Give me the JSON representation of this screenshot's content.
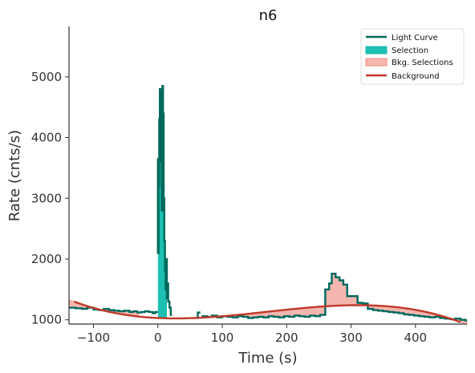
{
  "chart_data": {
    "type": "line",
    "title": "n6",
    "xlabel": "Time (s)",
    "ylabel": "Rate (cnts/s)",
    "xlim": [
      -138,
      480
    ],
    "ylim": [
      930,
      5830
    ],
    "xticks": [
      -100,
      0,
      100,
      200,
      300,
      400
    ],
    "yticks": [
      1000,
      2000,
      3000,
      4000,
      5000
    ],
    "xtick_labels": [
      "−100",
      "0",
      "100",
      "200",
      "300",
      "400"
    ],
    "ytick_labels": [
      "1000",
      "2000",
      "3000",
      "4000",
      "5000"
    ],
    "legend": {
      "placement": "top-right",
      "entries": [
        {
          "label": "Light Curve",
          "kind": "line",
          "color": "#00695c"
        },
        {
          "label": "Selection",
          "kind": "patch",
          "color": "#1dbfb0"
        },
        {
          "label": "Bkg. Selections",
          "kind": "patch",
          "color": "#f4b6ae"
        },
        {
          "label": "Background",
          "kind": "line",
          "color": "#c0392b"
        }
      ]
    },
    "colors": {
      "light_curve": "#00695c",
      "selection": "#1dbfb0",
      "bkg_selection": "#f4b6ae",
      "bkg_selection_edge": "#f08e82",
      "background": "#c0392b",
      "axis": "#333333"
    },
    "background_poly": {
      "type": "cubic",
      "points": [
        [
          -130,
          1300
        ],
        [
          0,
          1030
        ],
        [
          300,
          1240
        ],
        [
          470,
          960
        ]
      ]
    },
    "selection": [
      0,
      14
    ],
    "bkg_selections": [
      [
        -138,
        -30
      ],
      [
        85,
        480
      ]
    ],
    "light_curve": {
      "segments": [
        {
          "x": [
            -138,
            -128,
            -118,
            -110,
            -100,
            -92,
            -84,
            -76,
            -68,
            -60,
            -52,
            -44,
            -38,
            -32,
            -26,
            -20,
            -14,
            -8,
            -4
          ],
          "y": [
            1200,
            1190,
            1180,
            1200,
            1170,
            1160,
            1180,
            1160,
            1150,
            1140,
            1150,
            1130,
            1140,
            1120,
            1130,
            1140,
            1130,
            1110,
            1130
          ]
        },
        {
          "x": [
            -1,
            0,
            1,
            2,
            3,
            4,
            5,
            6,
            7,
            8,
            9,
            10,
            11,
            12,
            13,
            14,
            15,
            16,
            18,
            20
          ],
          "y": [
            3650,
            2100,
            3200,
            4300,
            4800,
            3600,
            4700,
            2800,
            4850,
            4400,
            3000,
            2300,
            1800,
            1500,
            2000,
            1350,
            1600,
            1300,
            1200,
            1080
          ]
        },
        {
          "x": [
            58,
            62
          ],
          "y": [
            1030,
            1120
          ]
        },
        {
          "x": [
            68,
            76,
            84,
            92,
            100,
            108,
            116,
            124,
            132,
            140,
            148,
            156,
            164,
            172,
            180,
            188,
            196,
            204,
            212,
            220,
            228,
            236,
            244,
            252,
            260,
            266,
            270,
            276,
            282,
            288,
            294,
            300,
            310,
            318,
            326,
            334,
            342,
            350,
            358,
            366,
            374,
            382,
            390,
            398,
            406,
            414,
            422,
            430,
            438,
            446,
            454,
            462,
            470,
            478
          ],
          "y": [
            1060,
            1050,
            1070,
            1040,
            1060,
            1050,
            1040,
            1060,
            1050,
            1030,
            1040,
            1050,
            1040,
            1060,
            1050,
            1040,
            1060,
            1050,
            1070,
            1060,
            1050,
            1070,
            1060,
            1080,
            1500,
            1600,
            1760,
            1700,
            1650,
            1580,
            1390,
            1390,
            1280,
            1270,
            1180,
            1160,
            1150,
            1140,
            1130,
            1120,
            1110,
            1090,
            1080,
            1070,
            1060,
            1050,
            1040,
            1050,
            1030,
            1020,
            1010,
            1020,
            1000,
            990
          ]
        }
      ]
    }
  }
}
